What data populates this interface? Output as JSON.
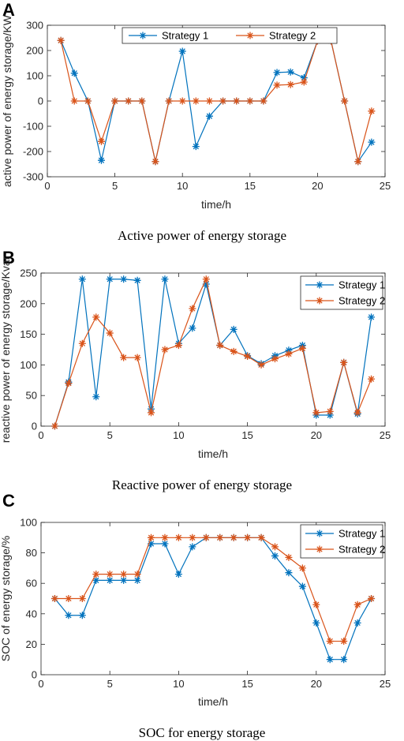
{
  "colors": {
    "strategy1": "#0072BD",
    "strategy2": "#D95319"
  },
  "chart_data": [
    {
      "type": "line",
      "panel": "A",
      "caption": "Active power of energy storage",
      "xlabel": "time/h",
      "ylabel": "active power of energy storage/KW",
      "xlim": [
        0,
        25
      ],
      "ylim": [
        -300,
        300
      ],
      "xticks": [
        0,
        5,
        10,
        15,
        20,
        25
      ],
      "yticks": [
        -300,
        -200,
        -100,
        0,
        100,
        200,
        300
      ],
      "legend_position": "top",
      "legend_layout": "horizontal",
      "marker": "asterisk",
      "x": [
        1,
        2,
        3,
        4,
        5,
        6,
        7,
        8,
        9,
        10,
        11,
        12,
        13,
        14,
        15,
        16,
        17,
        18,
        19,
        20,
        21,
        22,
        23,
        24
      ],
      "series": [
        {
          "name": "Strategy 1",
          "color": "#0072BD",
          "values": [
            240,
            110,
            0,
            -235,
            0,
            0,
            0,
            -240,
            0,
            197,
            -180,
            -60,
            0,
            0,
            0,
            0,
            113,
            115,
            92,
            238,
            238,
            0,
            -240,
            -163
          ]
        },
        {
          "name": "Strategy 2",
          "color": "#D95319",
          "values": [
            240,
            0,
            0,
            -160,
            0,
            0,
            0,
            -240,
            0,
            0,
            0,
            0,
            0,
            0,
            0,
            0,
            63,
            65,
            75,
            238,
            238,
            0,
            -240,
            -40
          ]
        }
      ]
    },
    {
      "type": "line",
      "panel": "B",
      "caption": "Reactive power of energy storage",
      "xlabel": "time/h",
      "ylabel": "reactive power of energy storage/Kvar",
      "xlim": [
        0,
        25
      ],
      "ylim": [
        0,
        250
      ],
      "xticks": [
        0,
        5,
        10,
        15,
        20,
        25
      ],
      "yticks": [
        0,
        50,
        100,
        150,
        200,
        250
      ],
      "legend_position": "top-right",
      "legend_layout": "vertical",
      "marker": "asterisk",
      "x": [
        1,
        2,
        3,
        4,
        5,
        6,
        7,
        8,
        9,
        10,
        11,
        12,
        13,
        14,
        15,
        16,
        17,
        18,
        19,
        20,
        21,
        22,
        23,
        24
      ],
      "series": [
        {
          "name": "Strategy 1",
          "color": "#0072BD",
          "values": [
            0,
            72,
            240,
            48,
            240,
            240,
            238,
            28,
            240,
            135,
            160,
            232,
            132,
            158,
            115,
            102,
            115,
            124,
            132,
            18,
            18,
            104,
            20,
            178
          ]
        },
        {
          "name": "Strategy 2",
          "color": "#D95319",
          "values": [
            0,
            70,
            135,
            178,
            152,
            112,
            112,
            22,
            125,
            132,
            192,
            240,
            132,
            122,
            114,
            100,
            110,
            118,
            127,
            22,
            24,
            104,
            22,
            77
          ]
        }
      ]
    },
    {
      "type": "line",
      "panel": "C",
      "caption": "SOC for energy storage",
      "xlabel": "time/h",
      "ylabel": "SOC of energy storage/%",
      "xlim": [
        0,
        25
      ],
      "ylim": [
        0,
        100
      ],
      "xticks": [
        0,
        5,
        10,
        15,
        20,
        25
      ],
      "yticks": [
        0,
        20,
        40,
        60,
        80,
        100
      ],
      "legend_position": "top-right",
      "legend_layout": "vertical",
      "marker": "asterisk",
      "x": [
        1,
        2,
        3,
        4,
        5,
        6,
        7,
        8,
        9,
        10,
        11,
        12,
        13,
        14,
        15,
        16,
        17,
        18,
        19,
        20,
        21,
        22,
        23,
        24
      ],
      "series": [
        {
          "name": "Strategy 1",
          "color": "#0072BD",
          "values": [
            50,
            39,
            39,
            62,
            62,
            62,
            62,
            86,
            86,
            66,
            84,
            90,
            90,
            90,
            90,
            90,
            78,
            67,
            58,
            34,
            10,
            10,
            34,
            50
          ]
        },
        {
          "name": "Strategy 2",
          "color": "#D95319",
          "values": [
            50,
            50,
            50,
            66,
            66,
            66,
            66,
            90,
            90,
            90,
            90,
            90,
            90,
            90,
            90,
            90,
            84,
            77,
            70,
            46,
            22,
            22,
            46,
            50
          ]
        }
      ]
    }
  ]
}
